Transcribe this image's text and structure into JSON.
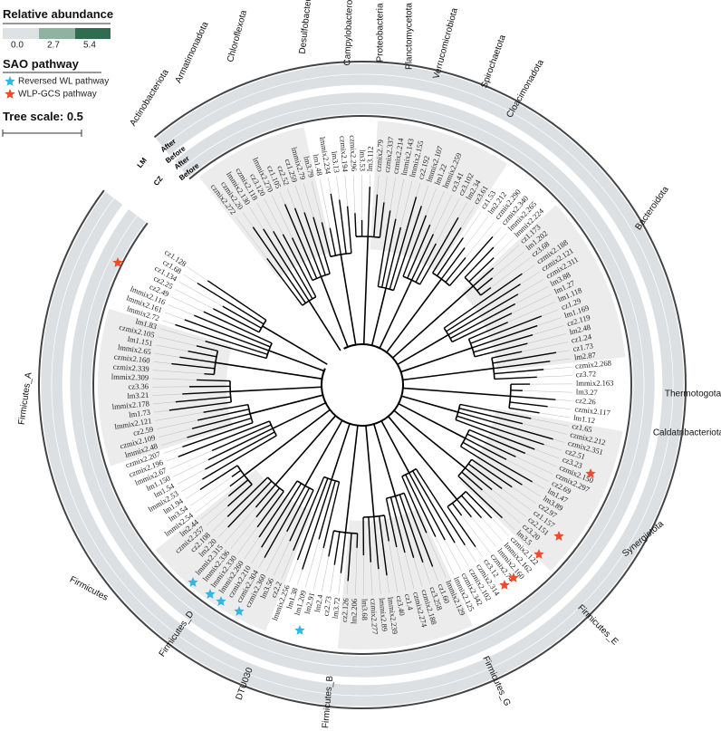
{
  "legend": {
    "abundance_title": "Relative abundance",
    "abundance_ticks": [
      "0.0",
      "2.7",
      "5.4"
    ],
    "pathway_title": "SAO pathway",
    "pathways": [
      "Reversed WL pathway",
      "WLP-GCS pathway"
    ],
    "tree_scale": "Tree scale: 0.5"
  },
  "rings": {
    "groups": [
      "LM",
      "CZ"
    ],
    "lm_timepoints": [
      "After",
      "Before"
    ],
    "cz_timepoints": [
      "After",
      "Before"
    ]
  },
  "tree": {
    "leaves": [
      "czmix2.272",
      "czmix2.20",
      "lmmix2.130",
      "czmix2.118",
      "cz3.120",
      "lmmix2.270",
      "cz1.105",
      "cz2.52",
      "cz1.259",
      "lmmix2.79",
      "lm3.79",
      "lm1.48",
      "lmmix2.234",
      "lm3.13",
      "czmix2.194",
      "czmix2.296",
      "lm3.53",
      "lm3.112",
      "czmix2.79",
      "czmix2.337",
      "czmix2.214",
      "lmmix2.143",
      "lmmix2.155",
      "cz2.192",
      "lmmix2.107",
      "lm1.22",
      "lmmix2.259",
      "cz3.41",
      "cz3.102",
      "lm2.34",
      "cz3.61",
      "cz1.53",
      "lm2.212",
      "czmix2.290",
      "czmix2.340",
      "lmmix2.265",
      "lmmix2.224",
      "cz1.173",
      "lm1.202",
      "cz3.68",
      "czmix2.188",
      "czmix2.121",
      "czmix2.311",
      "lm3.88",
      "lm1.27",
      "lm1.118",
      "cz1.29",
      "lm1.169",
      "cz2.119",
      "lm2.48",
      "cz1.24",
      "cz1.73",
      "lm2.87",
      "czmix2.268",
      "cz3.72",
      "lmmix2.163",
      "lm3.27",
      "cz2.26",
      "czmix2.117",
      "lm1.12",
      "cz1.65",
      "czmix2.212",
      "czmix2.351",
      "cz2.51",
      "cz3.23",
      "czmix2.150",
      "czmix2.297",
      "cz2.69",
      "lm1.47",
      "lm3.89",
      "cz2.97",
      "cz1.157",
      "cz2.151",
      "cz3.20",
      "lm3.5",
      "czmix2.122",
      "lmmix2.162",
      "lmmix2.160",
      "czmix2.74",
      "cz3.12",
      "czmix2.314",
      "czmix2.102",
      "czmix2.342",
      "lmmix2.125",
      "lmmix2.129",
      "cz1.60",
      "cz3.258",
      "czmix2.188",
      "czmix2.274",
      "cz1.4",
      "cz3.40",
      "lmmix2.239",
      "lmmix2.89",
      "czmix2.277",
      "lm3.68",
      "lm2.206",
      "cz2.126",
      "lm3.72",
      "cz2.73",
      "lm2.4",
      "lm2.91",
      "lm1.209",
      "lm1.38",
      "lmmix2.256",
      "cz2.2",
      "lm3.56",
      "czmix2.360",
      "czmix2.304",
      "czmix2.210",
      "lmmix2.260",
      "lmmix2.330",
      "lmmix2.336",
      "lmmix2.315",
      "lm2.20",
      "cz2.108",
      "czmix2.257",
      "lm2.44",
      "lmmix2.54",
      "lm3.54",
      "lm1.94",
      "lmmix2.53",
      "lm1.54",
      "lm1.150",
      "lmmix2.67",
      "czmix2.196",
      "czmix2.207",
      "lmmix2.48",
      "czmix2.109",
      "cz2.59",
      "lmmix2.121",
      "lm1.73",
      "lmmix2.178",
      "lm3.21",
      "cz3.36",
      "lmmix2.309",
      "czmix2.339",
      "czmix2.160",
      "lmmix2.65",
      "lm1.151",
      "czmix2.105",
      "lm1.83",
      "lmmix2.72",
      "lmmix2.161",
      "lmmix2.116",
      "cz2.49",
      "cz2.25",
      "cz1.134",
      "cz1.68",
      "cz1.128"
    ],
    "clades": [
      "Armatimonadota",
      "Actinobacteriota",
      "Chloroflexota",
      "Desulfobacterota",
      "Campylobacterota",
      "Proteobacteria",
      "Planctomycetota",
      "Verrucomicrobiota",
      "Spirochaetota",
      "Cloacimonadota",
      "Bacteroidota",
      "Thermotogota",
      "Caldatribacteriota",
      "Synergistota",
      "Firmicutes_E",
      "Firmicutes_G",
      "Firmicutes_B",
      "DTU030",
      "Firmicutes_D",
      "Firmicutes",
      "Firmicutes_A"
    ]
  }
}
